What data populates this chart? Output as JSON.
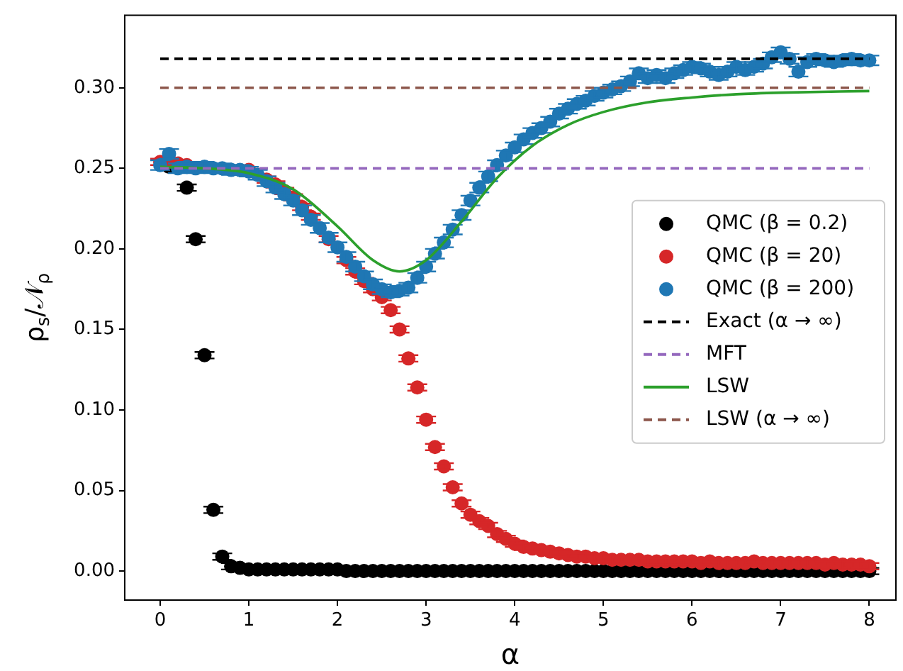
{
  "chart_data": {
    "type": "scatter",
    "xlabel": "α",
    "ylabel": "ρ$_{s}$/𝒩$_{ρ}$",
    "legend": "right",
    "grid": false,
    "xlim": [
      -0.4,
      8.3
    ],
    "xticks": [
      0,
      1,
      2,
      3,
      4,
      5,
      6,
      7,
      8
    ],
    "ylim": [
      -0.018,
      0.345
    ],
    "yticks": [
      {
        "value": 0,
        "label": "0.00"
      },
      {
        "value": 0.05,
        "label": "0.05"
      },
      {
        "value": 0.1,
        "label": "0.10"
      },
      {
        "value": 0.15,
        "label": "0.15"
      },
      {
        "value": 0.2,
        "label": "0.20"
      },
      {
        "value": 0.25,
        "label": "0.25"
      },
      {
        "value": 0.3,
        "label": "0.30"
      }
    ],
    "x": [
      0,
      0.1,
      0.2,
      0.3,
      0.4,
      0.5,
      0.6,
      0.7,
      0.8,
      0.9,
      1,
      1.1,
      1.2,
      1.3,
      1.4,
      1.5,
      1.6,
      1.7,
      1.8,
      1.9,
      2,
      2.1,
      2.2,
      2.3,
      2.4,
      2.5,
      2.6,
      2.7,
      2.8,
      2.9,
      3,
      3.1,
      3.2,
      3.3,
      3.4,
      3.5,
      3.6,
      3.7,
      3.8,
      3.9,
      4,
      4.1,
      4.2,
      4.3,
      4.4,
      4.5,
      4.6,
      4.7,
      4.8,
      4.9,
      5,
      5.1,
      5.2,
      5.3,
      5.4,
      5.5,
      5.6,
      5.7,
      5.8,
      5.9,
      6,
      6.1,
      6.2,
      6.3,
      6.4,
      6.5,
      6.6,
      6.7,
      6.8,
      6.9,
      7,
      7.1,
      7.2,
      7.3,
      7.4,
      7.5,
      7.6,
      7.7,
      7.8,
      7.9,
      8
    ],
    "series": [
      {
        "name": "QMC (β = 0.2)",
        "type": "scatter",
        "marker": "circle",
        "color": "#000000",
        "values": [
          null,
          0.251,
          null,
          0.238,
          0.206,
          0.134,
          0.038,
          0.009,
          0.003,
          0.002,
          0.001,
          0.001,
          0.001,
          0.001,
          0.001,
          0.001,
          0.001,
          0.001,
          0.001,
          0.001,
          0.001,
          0,
          0,
          0,
          0,
          0,
          0,
          0,
          0,
          0,
          0,
          0,
          0,
          0,
          0,
          0,
          0,
          0,
          0,
          0,
          0,
          0,
          0,
          0,
          0,
          0,
          0,
          0,
          0,
          0,
          0,
          0,
          0,
          0,
          0,
          0,
          0,
          0,
          0,
          0,
          0,
          0,
          0,
          0,
          0,
          0,
          0,
          0,
          0,
          0,
          0,
          0,
          0,
          0,
          0,
          0,
          0,
          0,
          0,
          0,
          0
        ],
        "errors": [
          null,
          0.002,
          null,
          0.002,
          0.002,
          0.002,
          0.002,
          0.002,
          0.002,
          0.002,
          0.002,
          0.002,
          0.002,
          0.002,
          0.002,
          0.002,
          0.002,
          0.002,
          0.002,
          0.002,
          0.002,
          0.002,
          0.002,
          0.002,
          0.002,
          0.002,
          0.002,
          0.002,
          0.002,
          0.002,
          0.002,
          0.002,
          0.002,
          0.002,
          0.002,
          0.002,
          0.002,
          0.002,
          0.002,
          0.002,
          0.002,
          0.002,
          0.002,
          0.002,
          0.002,
          0.002,
          0.002,
          0.002,
          0.002,
          0.002,
          0.002,
          0.002,
          0.002,
          0.002,
          0.002,
          0.002,
          0.002,
          0.002,
          0.002,
          0.002,
          0.002,
          0.002,
          0.002,
          0.002,
          0.002,
          0.002,
          0.002,
          0.002,
          0.002,
          0.002,
          0.002,
          0.002,
          0.002,
          0.002,
          0.002,
          0.002,
          0.002,
          0.002,
          0.002,
          0.002,
          0.002
        ]
      },
      {
        "name": "QMC (β = 20)",
        "type": "scatter",
        "marker": "circle",
        "color": "#d62728",
        "values": [
          0.254,
          0.254,
          0.253,
          0.252,
          null,
          null,
          null,
          null,
          null,
          null,
          0.249,
          null,
          0.243,
          0.24,
          0.236,
          0.232,
          0.226,
          0.22,
          null,
          0.206,
          null,
          0.193,
          0.186,
          0.18,
          0.175,
          0.17,
          0.162,
          0.15,
          0.132,
          0.114,
          0.094,
          0.077,
          0.065,
          0.052,
          0.042,
          0.035,
          0.031,
          0.028,
          0.023,
          0.02,
          0.017,
          0.015,
          0.014,
          0.013,
          0.012,
          0.011,
          0.01,
          0.009,
          0.009,
          0.008,
          0.008,
          0.007,
          0.007,
          0.007,
          0.007,
          0.006,
          0.006,
          0.006,
          0.006,
          0.006,
          0.006,
          0.005,
          0.006,
          0.005,
          0.005,
          0.005,
          0.005,
          0.006,
          0.005,
          0.005,
          0.005,
          0.005,
          0.005,
          0.005,
          0.005,
          0.004,
          0.005,
          0.004,
          0.004,
          0.004,
          0.003
        ],
        "errors": [
          0.002,
          0.002,
          0.002,
          0.002,
          null,
          null,
          null,
          null,
          null,
          null,
          0.002,
          null,
          0.002,
          0.002,
          0.002,
          0.002,
          0.002,
          0.002,
          null,
          0.002,
          null,
          0.002,
          0.002,
          0.002,
          0.002,
          0.002,
          0.002,
          0.002,
          0.002,
          0.002,
          0.002,
          0.002,
          0.002,
          0.002,
          0.002,
          0.002,
          0.002,
          0.002,
          0.002,
          0.002,
          0.002,
          0.002,
          0.002,
          0.002,
          0.002,
          0.002,
          0.002,
          0.002,
          0.002,
          0.002,
          0.002,
          0.002,
          0.002,
          0.002,
          0.002,
          0.002,
          0.002,
          0.002,
          0.002,
          0.002,
          0.002,
          0.002,
          0.002,
          0.002,
          0.002,
          0.002,
          0.002,
          0.002,
          0.002,
          0.002,
          0.002,
          0.002,
          0.002,
          0.002,
          0.002,
          0.002,
          0.002,
          0.002,
          0.002,
          0.002,
          0.002
        ]
      },
      {
        "name": "QMC (β = 200)",
        "type": "scatter",
        "marker": "circle",
        "color": "#1f77b4",
        "values": [
          0.252,
          0.259,
          0.25,
          0.251,
          0.25,
          0.251,
          0.25,
          0.25,
          0.249,
          0.249,
          0.248,
          0.246,
          0.242,
          0.238,
          0.234,
          0.23,
          0.224,
          0.218,
          0.213,
          0.207,
          0.201,
          0.195,
          0.189,
          0.183,
          0.178,
          0.175,
          0.173,
          0.174,
          0.176,
          0.182,
          0.189,
          0.197,
          0.204,
          0.212,
          0.221,
          0.23,
          0.238,
          0.245,
          0.252,
          0.258,
          0.263,
          0.268,
          0.272,
          0.275,
          0.279,
          0.284,
          0.287,
          0.29,
          0.292,
          0.295,
          0.297,
          0.299,
          0.301,
          0.304,
          0.309,
          0.306,
          0.308,
          0.306,
          0.309,
          0.311,
          0.313,
          0.312,
          0.31,
          0.308,
          0.31,
          0.313,
          0.311,
          0.313,
          0.315,
          0.319,
          0.322,
          0.318,
          0.31,
          0.316,
          0.318,
          0.317,
          0.316,
          0.317,
          0.318,
          0.317,
          0.317
        ],
        "errors": [
          0.003,
          0.003,
          0.003,
          0.003,
          0.003,
          0.003,
          0.003,
          0.003,
          0.003,
          0.003,
          0.003,
          0.003,
          0.003,
          0.003,
          0.003,
          0.003,
          0.003,
          0.003,
          0.003,
          0.003,
          0.003,
          0.003,
          0.003,
          0.003,
          0.003,
          0.003,
          0.003,
          0.003,
          0.003,
          0.003,
          0.003,
          0.003,
          0.003,
          0.003,
          0.003,
          0.003,
          0.003,
          0.003,
          0.003,
          0.003,
          0.003,
          0.003,
          0.003,
          0.003,
          0.003,
          0.003,
          0.003,
          0.003,
          0.003,
          0.003,
          0.003,
          0.003,
          0.003,
          0.003,
          0.003,
          0.003,
          0.003,
          0.003,
          0.003,
          0.003,
          0.003,
          0.003,
          0.003,
          0.003,
          0.003,
          0.003,
          0.003,
          0.003,
          0.003,
          0.003,
          0.003,
          0.003,
          0.003,
          0.003,
          0.003,
          0.003,
          0.003,
          0.003,
          0.003,
          0.003,
          0.003
        ]
      },
      {
        "name": "Exact (α → ∞)",
        "type": "line",
        "line_style": "dashed",
        "marker": "none",
        "color": "#000000",
        "x": [
          0,
          8
        ],
        "values": [
          0.318,
          0.318
        ]
      },
      {
        "name": "MFT",
        "type": "line",
        "line_style": "dashed",
        "marker": "none",
        "color": "#9467bd",
        "x": [
          0,
          8
        ],
        "values": [
          0.25,
          0.25
        ]
      },
      {
        "name": "LSW",
        "type": "line",
        "line_style": "solid",
        "marker": "none",
        "color": "#2ca02c",
        "x": [
          0,
          0.5,
          1,
          1.5,
          2,
          2.4,
          2.7,
          3,
          3.4,
          3.8,
          4.2,
          4.6,
          5,
          5.5,
          6,
          6.5,
          7,
          8
        ],
        "values": [
          0.251,
          0.25,
          0.247,
          0.237,
          0.214,
          0.193,
          0.186,
          0.193,
          0.217,
          0.244,
          0.264,
          0.277,
          0.285,
          0.291,
          0.294,
          0.296,
          0.297,
          0.298
        ]
      },
      {
        "name": "LSW (α → ∞)",
        "type": "line",
        "line_style": "dashed",
        "marker": "none",
        "color": "#8c564b",
        "x": [
          0,
          8
        ],
        "values": [
          0.3,
          0.3
        ]
      }
    ]
  }
}
